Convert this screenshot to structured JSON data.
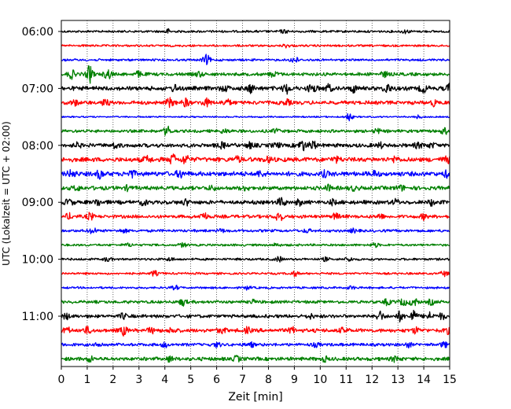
{
  "chart_data": {
    "type": "line",
    "title": "",
    "xlabel": "Zeit  [min]",
    "ylabel": "UTC (Lokalzeit = UTC + 02:00)",
    "xlim": [
      0,
      15
    ],
    "x_ticks": [
      "0",
      "1",
      "2",
      "3",
      "4",
      "5",
      "6",
      "7",
      "8",
      "9",
      "10",
      "11",
      "12",
      "13",
      "14",
      "15"
    ],
    "y_ticks": [
      "06:00",
      "07:00",
      "08:00",
      "09:00",
      "10:00",
      "11:00"
    ],
    "grid": "vertical dotted",
    "legend": "none",
    "trace_colors": [
      "#000000",
      "#ff0000",
      "#0000ff",
      "#008000"
    ],
    "traces": [
      {
        "label": "06:00",
        "color": "#000000",
        "amp": 1.5,
        "bursts": [
          [
            4.1,
            2.5
          ],
          [
            8.6,
            2.0
          ],
          [
            13.3,
            2.0
          ]
        ]
      },
      {
        "label": "06:15",
        "color": "#ff0000",
        "amp": 1.4,
        "bursts": [
          [
            8.7,
            2.0
          ]
        ]
      },
      {
        "label": "06:30",
        "color": "#0000ff",
        "amp": 1.5,
        "bursts": [
          [
            5.6,
            6.0
          ],
          [
            9.0,
            4.0
          ]
        ]
      },
      {
        "label": "06:45",
        "color": "#008000",
        "amp": 2.2,
        "bursts": [
          [
            0.4,
            5.0
          ],
          [
            1.1,
            10.0
          ],
          [
            1.8,
            6.0
          ],
          [
            3.0,
            3.0
          ],
          [
            5.3,
            3.0
          ],
          [
            8.2,
            3.0
          ],
          [
            12.5,
            3.0
          ]
        ]
      },
      {
        "label": "07:00",
        "color": "#000000",
        "amp": 2.8,
        "bursts": [
          [
            4.4,
            3.5
          ],
          [
            6.3,
            3.0
          ],
          [
            7.3,
            4.5
          ],
          [
            8.7,
            5.5
          ],
          [
            9.7,
            5.0
          ],
          [
            10.3,
            4.0
          ],
          [
            11.3,
            4.0
          ],
          [
            12.6,
            5.0
          ],
          [
            14.0,
            4.5
          ],
          [
            15.0,
            5.0
          ]
        ]
      },
      {
        "label": "07:15",
        "color": "#ff0000",
        "amp": 2.5,
        "bursts": [
          [
            0.5,
            3.0
          ],
          [
            1.7,
            3.5
          ],
          [
            4.2,
            5.0
          ],
          [
            4.8,
            4.5
          ],
          [
            5.6,
            4.5
          ],
          [
            6.4,
            4.0
          ],
          [
            8.7,
            3.0
          ],
          [
            14.4,
            3.0
          ]
        ]
      },
      {
        "label": "07:30",
        "color": "#0000ff",
        "amp": 1.0,
        "bursts": [
          [
            11.1,
            5.0
          ],
          [
            13.8,
            2.0
          ]
        ]
      },
      {
        "label": "07:45",
        "color": "#008000",
        "amp": 2.0,
        "bursts": [
          [
            4.1,
            5.5
          ],
          [
            6.3,
            2.5
          ],
          [
            8.3,
            2.5
          ],
          [
            12.2,
            2.5
          ],
          [
            14.8,
            3.5
          ]
        ]
      },
      {
        "label": "08:00",
        "color": "#000000",
        "amp": 2.6,
        "bursts": [
          [
            0.6,
            2.5
          ],
          [
            2.1,
            3.0
          ],
          [
            6.2,
            3.0
          ],
          [
            7.3,
            3.0
          ],
          [
            8.3,
            2.5
          ],
          [
            9.3,
            6.0
          ],
          [
            9.7,
            5.0
          ],
          [
            12.3,
            2.5
          ],
          [
            13.8,
            3.0
          ],
          [
            14.3,
            2.5
          ]
        ]
      },
      {
        "label": "08:15",
        "color": "#ff0000",
        "amp": 3.0,
        "bursts": [
          [
            3.3,
            3.5
          ],
          [
            4.3,
            5.5
          ],
          [
            4.8,
            4.5
          ],
          [
            6.8,
            3.0
          ],
          [
            8.0,
            3.0
          ],
          [
            10.6,
            3.0
          ],
          [
            12.9,
            3.0
          ],
          [
            14.9,
            3.5
          ]
        ]
      },
      {
        "label": "08:30",
        "color": "#0000ff",
        "amp": 3.0,
        "bursts": [
          [
            0.4,
            4.0
          ],
          [
            1.5,
            4.5
          ],
          [
            2.7,
            4.0
          ],
          [
            4.6,
            4.0
          ],
          [
            7.7,
            3.0
          ],
          [
            10.2,
            3.0
          ],
          [
            12.1,
            3.0
          ],
          [
            14.9,
            3.0
          ]
        ]
      },
      {
        "label": "08:45",
        "color": "#008000",
        "amp": 2.6,
        "bursts": [
          [
            0.6,
            2.5
          ],
          [
            2.6,
            2.5
          ],
          [
            5.8,
            2.5
          ],
          [
            7.1,
            2.5
          ],
          [
            10.3,
            3.0
          ],
          [
            11.3,
            2.5
          ],
          [
            13.1,
            3.0
          ]
        ]
      },
      {
        "label": "09:00",
        "color": "#000000",
        "amp": 2.6,
        "bursts": [
          [
            0.3,
            3.5
          ],
          [
            1.4,
            3.5
          ],
          [
            3.2,
            3.0
          ],
          [
            4.8,
            3.0
          ],
          [
            8.5,
            5.0
          ],
          [
            9.2,
            3.0
          ],
          [
            10.5,
            2.5
          ],
          [
            12.9,
            3.0
          ],
          [
            14.3,
            3.0
          ]
        ]
      },
      {
        "label": "09:15",
        "color": "#ff0000",
        "amp": 2.2,
        "bursts": [
          [
            0.3,
            3.0
          ],
          [
            1.1,
            4.0
          ],
          [
            5.5,
            5.0
          ],
          [
            8.4,
            6.0
          ],
          [
            10.6,
            3.5
          ],
          [
            12.3,
            3.0
          ],
          [
            14.0,
            3.0
          ]
        ]
      },
      {
        "label": "09:30",
        "color": "#0000ff",
        "amp": 1.8,
        "bursts": [
          [
            1.2,
            3.5
          ],
          [
            2.4,
            2.0
          ],
          [
            6.2,
            2.0
          ],
          [
            9.5,
            2.0
          ],
          [
            11.3,
            2.0
          ]
        ]
      },
      {
        "label": "09:45",
        "color": "#008000",
        "amp": 1.5,
        "bursts": [
          [
            2.6,
            2.0
          ],
          [
            4.7,
            2.5
          ],
          [
            8.3,
            2.0
          ],
          [
            12.1,
            2.5
          ]
        ]
      },
      {
        "label": "10:00",
        "color": "#000000",
        "amp": 1.5,
        "bursts": [
          [
            1.8,
            2.5
          ],
          [
            4.2,
            2.0
          ],
          [
            8.4,
            3.0
          ],
          [
            10.2,
            2.0
          ],
          [
            11.1,
            2.5
          ]
        ]
      },
      {
        "label": "10:15",
        "color": "#ff0000",
        "amp": 1.4,
        "bursts": [
          [
            3.6,
            3.0
          ],
          [
            9.0,
            3.0
          ],
          [
            14.8,
            3.0
          ]
        ]
      },
      {
        "label": "10:30",
        "color": "#0000ff",
        "amp": 1.4,
        "bursts": [
          [
            4.4,
            2.5
          ],
          [
            7.2,
            2.0
          ],
          [
            11.2,
            2.0
          ]
        ]
      },
      {
        "label": "10:45",
        "color": "#008000",
        "amp": 2.0,
        "bursts": [
          [
            4.7,
            4.0
          ],
          [
            7.4,
            2.0
          ],
          [
            12.6,
            3.5
          ],
          [
            13.2,
            4.0
          ],
          [
            13.6,
            5.0
          ],
          [
            14.3,
            3.0
          ]
        ]
      },
      {
        "label": "11:00",
        "color": "#000000",
        "amp": 2.2,
        "bursts": [
          [
            0.2,
            3.0
          ],
          [
            2.4,
            3.0
          ],
          [
            9.6,
            2.5
          ],
          [
            12.3,
            6.0
          ],
          [
            13.1,
            5.5
          ],
          [
            13.6,
            6.5
          ],
          [
            14.2,
            4.5
          ],
          [
            14.7,
            3.5
          ]
        ]
      },
      {
        "label": "11:15",
        "color": "#ff0000",
        "amp": 2.5,
        "bursts": [
          [
            0.2,
            3.5
          ],
          [
            1.0,
            4.0
          ],
          [
            2.4,
            5.0
          ],
          [
            3.5,
            3.0
          ],
          [
            4.3,
            3.0
          ],
          [
            6.2,
            3.0
          ],
          [
            7.2,
            3.0
          ],
          [
            8.9,
            3.0
          ],
          [
            10.9,
            3.0
          ],
          [
            13.7,
            3.0
          ],
          [
            14.9,
            3.0
          ]
        ]
      },
      {
        "label": "11:30",
        "color": "#0000ff",
        "amp": 2.0,
        "bursts": [
          [
            1.5,
            2.5
          ],
          [
            4.0,
            2.5
          ],
          [
            6.0,
            2.5
          ],
          [
            7.3,
            2.5
          ],
          [
            9.8,
            2.5
          ],
          [
            13.4,
            2.5
          ],
          [
            14.8,
            3.0
          ]
        ]
      },
      {
        "label": "11:45",
        "color": "#008000",
        "amp": 2.4,
        "bursts": [
          [
            1.1,
            3.0
          ],
          [
            4.2,
            3.0
          ],
          [
            6.8,
            3.0
          ],
          [
            10.2,
            2.5
          ],
          [
            12.9,
            3.0
          ]
        ]
      }
    ]
  }
}
